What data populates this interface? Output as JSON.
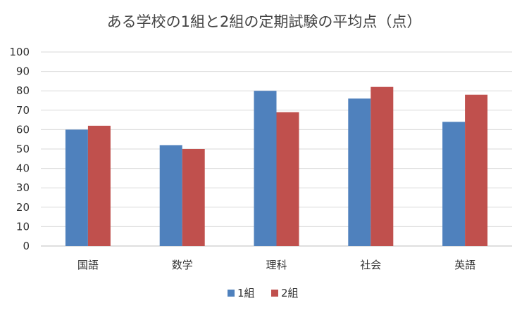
{
  "colors": {
    "series1": "#4F81BD",
    "series2": "#C0504D",
    "grid": "#D9D9D9",
    "axis": "#BFBFBF"
  },
  "chart_data": {
    "type": "bar",
    "title": "ある学校の1組と2組の定期試験の平均点（点）",
    "xlabel": "",
    "ylabel": "",
    "categories": [
      "国語",
      "数学",
      "理科",
      "社会",
      "英語"
    ],
    "series": [
      {
        "name": "1組",
        "values": [
          60,
          52,
          80,
          76,
          64
        ]
      },
      {
        "name": "2組",
        "values": [
          62,
          50,
          69,
          82,
          78
        ]
      }
    ],
    "ylim": [
      0,
      100
    ],
    "yticks": [
      0,
      10,
      20,
      30,
      40,
      50,
      60,
      70,
      80,
      90,
      100
    ],
    "grid": true,
    "legend_position": "bottom"
  }
}
